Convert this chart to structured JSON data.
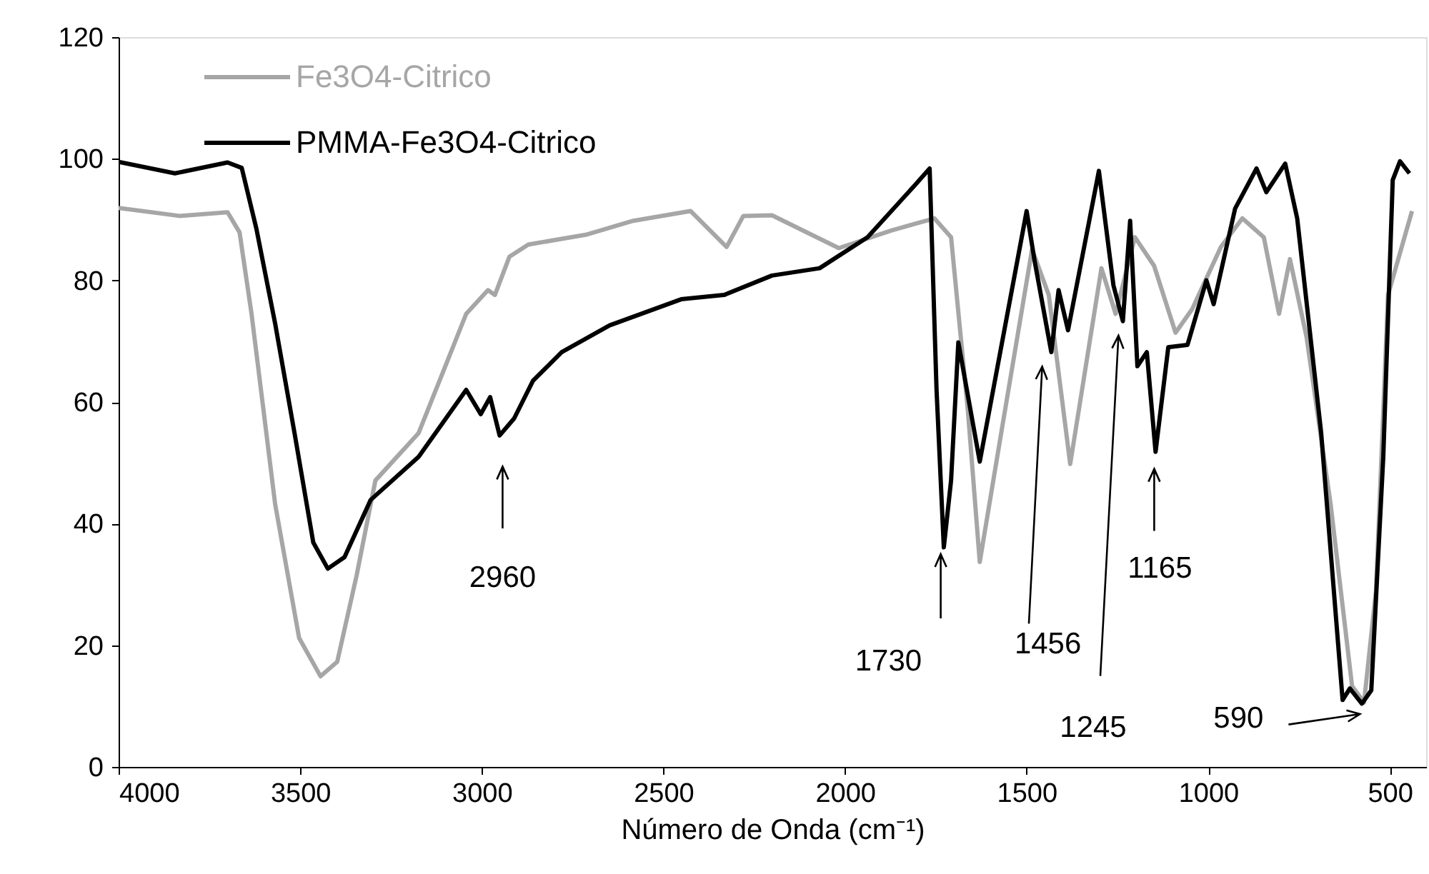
{
  "chart_data": {
    "type": "line",
    "xlabel": "Número de Onda (cm⁻¹)",
    "xlim": [
      4000,
      400
    ],
    "ylim": [
      0,
      120
    ],
    "xticks": [
      4000,
      3500,
      3000,
      2500,
      2000,
      1500,
      1000,
      500
    ],
    "yticks": [
      0,
      20,
      40,
      60,
      80,
      100,
      120
    ],
    "grid": false,
    "legend": "top left",
    "series": [
      {
        "name": "Fe3O4-Citrico",
        "color": "#a6a6a6",
        "x": [
          4000,
          3832,
          3700,
          3667,
          3634,
          3569,
          3503,
          3444,
          3398,
          3345,
          3293,
          3174,
          3095,
          3043,
          2983,
          2964,
          2924,
          2872,
          2714,
          2583,
          2425,
          2326,
          2280,
          2201,
          2017,
          1873,
          1754,
          1708,
          1662,
          1629,
          1570,
          1485,
          1439,
          1380,
          1294,
          1255,
          1202,
          1149,
          1090,
          1044,
          965,
          906,
          847,
          805,
          775,
          729,
          663,
          604,
          571,
          538,
          505,
          439
        ],
        "values": [
          91.9,
          90.6,
          91.2,
          87.9,
          74.5,
          43.2,
          21.2,
          14.9,
          17.3,
          31.4,
          47.1,
          54.9,
          66.7,
          74.5,
          78.4,
          77.6,
          83.9,
          85.9,
          87.5,
          89.8,
          91.4,
          85.5,
          90.6,
          90.7,
          85.3,
          88.2,
          90.2,
          87.1,
          58.8,
          33.7,
          54.9,
          85.1,
          77.6,
          49.8,
          82,
          74.5,
          87.1,
          82.4,
          71.4,
          75.3,
          85.5,
          90.2,
          87.1,
          74.5,
          83.5,
          70.6,
          43.2,
          13.3,
          10.6,
          29,
          77.6,
          91.4
        ]
      },
      {
        "name": "PMMA-Fe3O4-Citrico",
        "color": "#000000",
        "x": [
          4000,
          3845,
          3700,
          3661,
          3621,
          3569,
          3516,
          3464,
          3424,
          3378,
          3306,
          3174,
          3043,
          3003,
          2977,
          2951,
          2911,
          2859,
          2780,
          2648,
          2451,
          2333,
          2201,
          2070,
          1938,
          1807,
          1767,
          1748,
          1728,
          1708,
          1688,
          1629,
          1500,
          1478,
          1432,
          1412,
          1386,
          1301,
          1261,
          1235,
          1215,
          1195,
          1169,
          1145,
          1110,
          1057,
          1005,
          985,
          926,
          867,
          840,
          788,
          755,
          689,
          630,
          610,
          577,
          551,
          518,
          492,
          472,
          446
        ],
        "values": [
          99.5,
          97.6,
          99.4,
          98.5,
          88.6,
          72.9,
          55,
          36.9,
          32.6,
          34.5,
          43.9,
          51,
          62,
          58,
          60.8,
          54.5,
          57.3,
          63.5,
          68.2,
          72.6,
          76.9,
          77.6,
          80.8,
          82,
          87.1,
          95.7,
          98.4,
          62,
          36.1,
          47.1,
          69.8,
          50.2,
          91.4,
          83.2,
          68.2,
          78.4,
          71.8,
          98,
          79.2,
          73.3,
          89.8,
          65.9,
          68.2,
          51.8,
          69,
          69.4,
          80,
          76.1,
          91.8,
          98.4,
          94.5,
          99.2,
          90.2,
          54.9,
          11,
          12.9,
          10.4,
          12.6,
          51,
          96.5,
          99.6,
          97.6
        ]
      }
    ],
    "annotations": [
      "2960",
      "1730",
      "1456",
      "1245",
      "1165",
      "590"
    ]
  }
}
